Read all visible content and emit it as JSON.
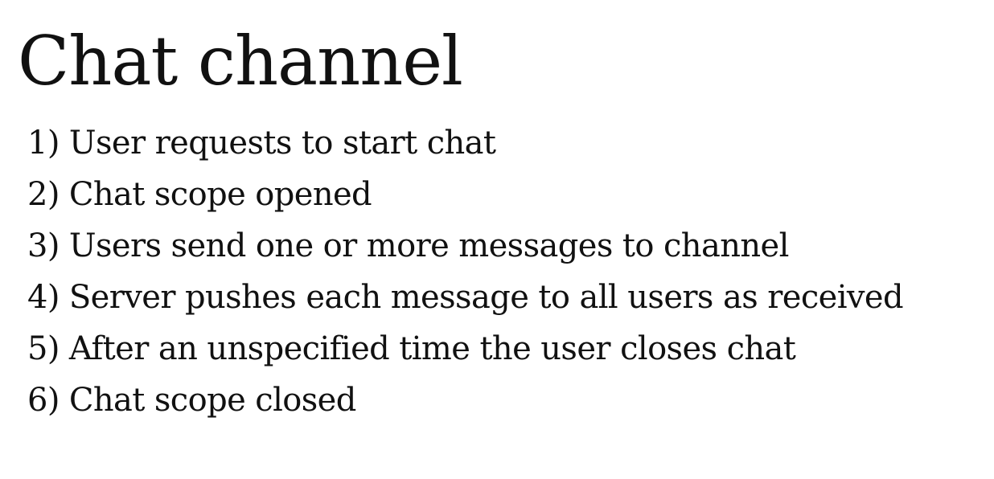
{
  "slide": {
    "title": "Chat channel",
    "steps": [
      {
        "number": "1)",
        "text": "User requests to start chat"
      },
      {
        "number": "2)",
        "text": "Chat scope opened"
      },
      {
        "number": "3)",
        "text": "Users send one or more messages to channel"
      },
      {
        "number": "4)",
        "text": "Server pushes each message to all users as received"
      },
      {
        "number": "5)",
        "text": "After an unspecified time the user closes chat"
      },
      {
        "number": "6)",
        "text": "Chat scope closed"
      }
    ]
  }
}
